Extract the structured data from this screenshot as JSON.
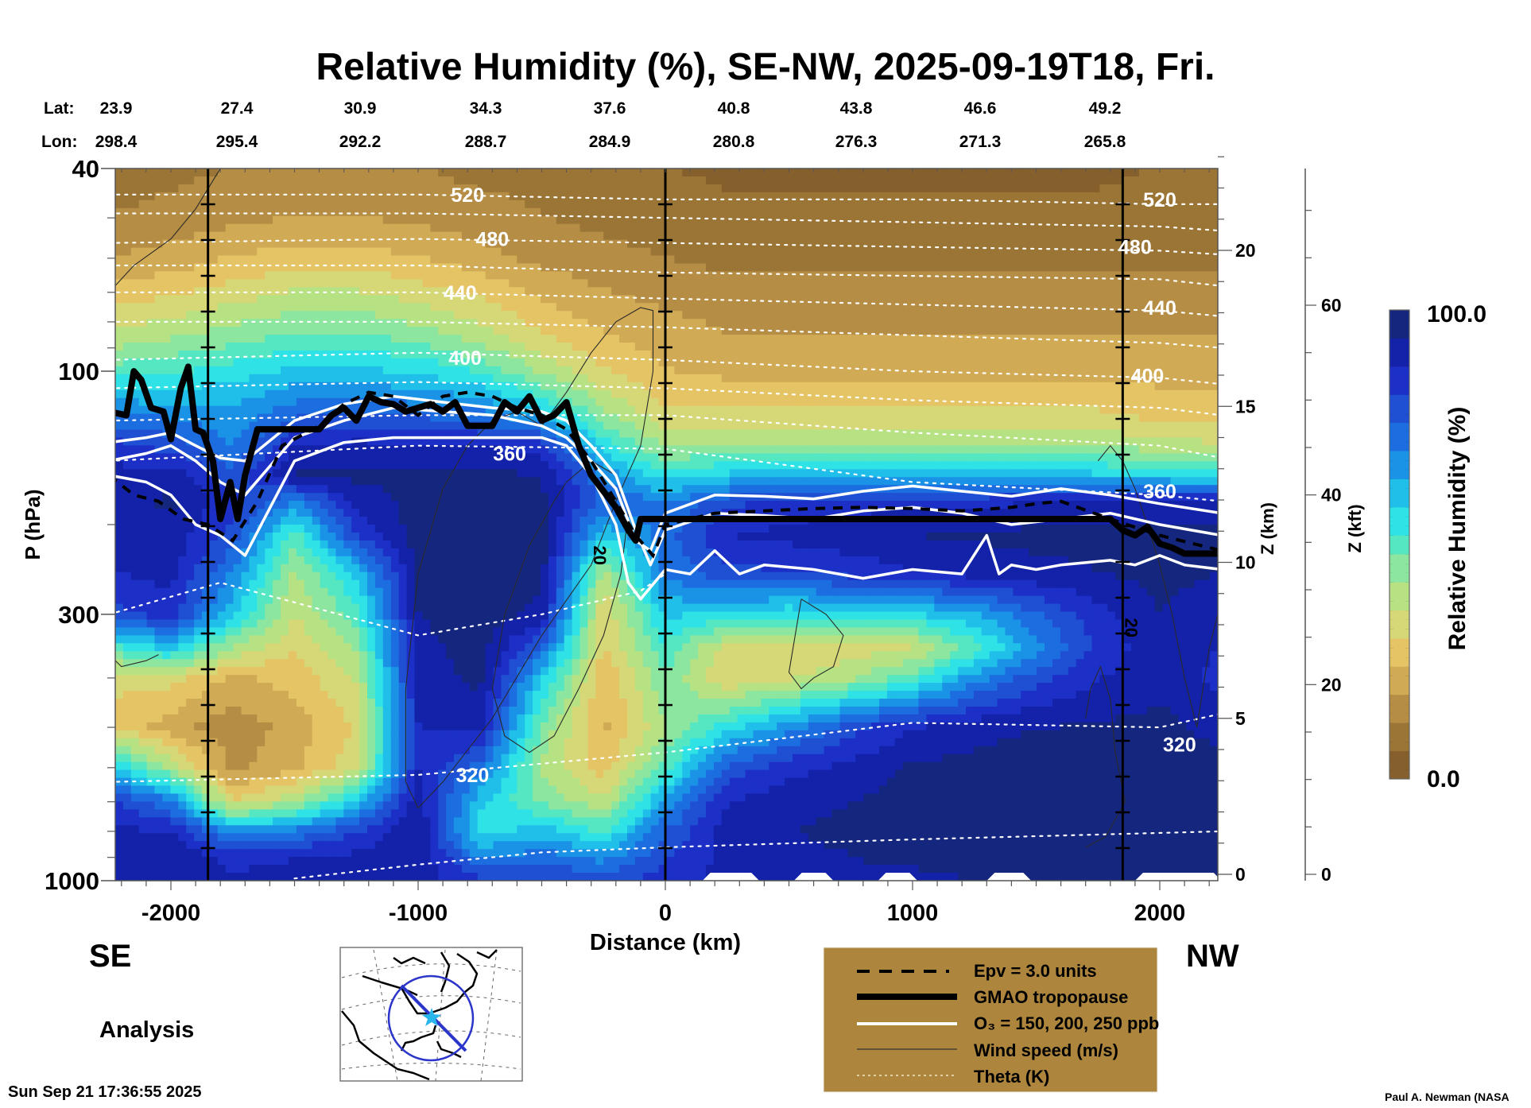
{
  "chart_data": {
    "type": "heatmap",
    "title": "Relative Humidity (%), SE-NW, 2025-09-19T18, Fri.",
    "xlabel": "Distance (km)",
    "ylabel": "P (hPa)",
    "right_axis_1_label": "Z (km)",
    "right_axis_2_label": "Z (kft)",
    "colorbar_label": "Relative Humidity (%)",
    "colorbar_min_label": "0.0",
    "colorbar_max_label": "100.0",
    "colorbar_range": [
      0,
      100
    ],
    "xlim": [
      -2250,
      2250
    ],
    "ylim": [
      1000,
      40
    ],
    "yscale": "log",
    "x_ticks": [
      -2000,
      -1000,
      0,
      1000,
      2000
    ],
    "x_tick_labels": [
      "-2000",
      "-1000",
      "0",
      "1000",
      "2000"
    ],
    "y_ticks": [
      40,
      100,
      300,
      1000
    ],
    "y_tick_labels": [
      "40",
      "100",
      "300",
      "1000"
    ],
    "z_km_ticks": [
      0,
      5,
      10,
      15,
      20
    ],
    "z_km_tick_labels": [
      "0",
      "5",
      "10",
      "15",
      "20"
    ],
    "z_kft_ticks": [
      0,
      20,
      40,
      60
    ],
    "z_kft_tick_labels": [
      "0",
      "20",
      "40",
      "60"
    ],
    "lat_label": "Lat:",
    "lon_label": "Lon:",
    "lat_values": [
      "23.9",
      "27.4",
      "30.9",
      "34.3",
      "37.6",
      "40.8",
      "43.8",
      "46.6",
      "49.2"
    ],
    "lon_values": [
      "298.4",
      "295.4",
      "292.2",
      "288.7",
      "284.9",
      "280.8",
      "276.3",
      "271.3",
      "265.8"
    ],
    "vertical_markers_km": [
      -1850,
      0,
      1850
    ],
    "theta_contours": [
      {
        "label": "520",
        "pressure": [
          45,
          45,
          46,
          46,
          47,
          47
        ],
        "x": [
          -2250,
          -1000,
          0,
          1000,
          2000,
          2250
        ]
      },
      {
        "label": "480",
        "pressure": [
          56,
          55,
          56,
          57,
          58,
          59
        ],
        "x": [
          -2250,
          -1000,
          0,
          1000,
          2000,
          2250
        ]
      },
      {
        "label": "440",
        "pressure": [
          70,
          70,
          72,
          74,
          76,
          78
        ],
        "x": [
          -2250,
          -1000,
          0,
          1000,
          2000,
          2250
        ]
      },
      {
        "label": "400",
        "pressure": [
          95,
          92,
          95,
          100,
          103,
          106
        ],
        "x": [
          -2250,
          -1000,
          0,
          1000,
          2000,
          2250
        ]
      },
      {
        "label": "360",
        "pressure": [
          150,
          140,
          142,
          165,
          175,
          180
        ],
        "x": [
          -2250,
          -1000,
          0,
          1000,
          2000,
          2250
        ]
      },
      {
        "label": "320",
        "pressure": [
          640,
          620,
          560,
          490,
          500,
          470
        ],
        "x": [
          -2250,
          -1000,
          0,
          1000,
          2000,
          2250
        ]
      },
      {
        "label": "",
        "pressure": [
          300,
          260,
          330,
          300,
          270,
          250
        ],
        "x": [
          -2250,
          -1800,
          -1000,
          -500,
          -100,
          0
        ]
      },
      {
        "label": "",
        "pressure": [
          990,
          930,
          880,
          860,
          830,
          800
        ],
        "x": [
          -1500,
          -1000,
          -500,
          0,
          1000,
          2250
        ]
      }
    ],
    "theta_label_positions": [
      {
        "label": "520",
        "x": -800,
        "p": 45
      },
      {
        "label": "480",
        "x": -700,
        "p": 55
      },
      {
        "label": "440",
        "x": -830,
        "p": 70
      },
      {
        "label": "400",
        "x": -810,
        "p": 94
      },
      {
        "label": "360",
        "x": -630,
        "p": 145
      },
      {
        "label": "320",
        "x": -780,
        "p": 620
      },
      {
        "label": "520",
        "x": 2000,
        "p": 46
      },
      {
        "label": "480",
        "x": 1900,
        "p": 57
      },
      {
        "label": "440",
        "x": 2000,
        "p": 75
      },
      {
        "label": "400",
        "x": 1950,
        "p": 102
      },
      {
        "label": "360",
        "x": 2000,
        "p": 172
      },
      {
        "label": "320",
        "x": 2080,
        "p": 540
      }
    ],
    "tropopause": {
      "x": [
        -2250,
        -2180,
        -2150,
        -2120,
        -2080,
        -2030,
        -2000,
        -1960,
        -1930,
        -1900,
        -1870,
        -1830,
        -1800,
        -1760,
        -1730,
        -1700,
        -1650,
        -1600,
        -1400,
        -1350,
        -1300,
        -1250,
        -1200,
        -1150,
        -1100,
        -1050,
        -1000,
        -950,
        -900,
        -850,
        -800,
        -700,
        -650,
        -600,
        -550,
        -500,
        -450,
        -400,
        -350,
        -300,
        -200,
        -150,
        -120,
        -100,
        0,
        400,
        1000,
        1800,
        1850,
        1900,
        1950,
        2000,
        2050,
        2100,
        2250
      ],
      "pressure": [
        120,
        122,
        100,
        104,
        118,
        120,
        136,
        108,
        98,
        130,
        132,
        150,
        195,
        165,
        195,
        160,
        130,
        130,
        130,
        122,
        118,
        125,
        112,
        115,
        116,
        120,
        118,
        116,
        120,
        115,
        128,
        128,
        115,
        120,
        112,
        125,
        122,
        115,
        140,
        160,
        185,
        205,
        215,
        195,
        195,
        195,
        195,
        195,
        205,
        210,
        202,
        218,
        222,
        228,
        228
      ]
    },
    "ozone_contours_ppb": [
      150,
      200,
      250
    ],
    "epv_units": 3.0,
    "wind_speed_label": "20",
    "rh_field": {
      "description": "Approximate relative humidity (%) on a coarse distance-pressure grid",
      "x": [
        -2250,
        -2000,
        -1750,
        -1500,
        -1250,
        -1000,
        -750,
        -500,
        -250,
        0,
        250,
        500,
        750,
        1000,
        1250,
        1500,
        1750,
        2000,
        2250
      ],
      "pressure": [
        40,
        50,
        60,
        70,
        85,
        100,
        120,
        140,
        160,
        180,
        210,
        250,
        300,
        350,
        400,
        500,
        600,
        700,
        800,
        900,
        1000
      ],
      "values": [
        [
          8,
          10,
          12,
          14,
          14,
          12,
          10,
          10,
          8,
          6,
          5,
          5,
          5,
          5,
          5,
          5,
          5,
          6,
          6
        ],
        [
          12,
          14,
          16,
          18,
          18,
          16,
          14,
          12,
          10,
          8,
          7,
          7,
          7,
          7,
          7,
          7,
          7,
          8,
          8
        ],
        [
          18,
          20,
          24,
          26,
          26,
          24,
          20,
          16,
          14,
          12,
          10,
          10,
          10,
          10,
          10,
          10,
          10,
          10,
          10
        ],
        [
          26,
          28,
          32,
          36,
          36,
          32,
          28,
          22,
          18,
          16,
          14,
          14,
          14,
          14,
          14,
          14,
          14,
          14,
          14
        ],
        [
          36,
          40,
          44,
          48,
          48,
          44,
          38,
          30,
          24,
          20,
          18,
          18,
          18,
          18,
          18,
          18,
          18,
          18,
          18
        ],
        [
          50,
          52,
          56,
          60,
          60,
          58,
          52,
          40,
          30,
          24,
          22,
          22,
          22,
          22,
          22,
          22,
          22,
          22,
          22
        ],
        [
          70,
          68,
          66,
          74,
          76,
          74,
          72,
          60,
          42,
          30,
          30,
          30,
          30,
          30,
          30,
          30,
          30,
          26,
          26
        ],
        [
          85,
          80,
          70,
          88,
          90,
          90,
          88,
          86,
          56,
          40,
          42,
          42,
          42,
          42,
          42,
          42,
          40,
          38,
          36
        ],
        [
          90,
          92,
          78,
          95,
          96,
          96,
          96,
          94,
          70,
          55,
          60,
          62,
          62,
          62,
          62,
          62,
          60,
          58,
          55
        ],
        [
          92,
          95,
          85,
          70,
          90,
          96,
          98,
          96,
          76,
          70,
          80,
          85,
          86,
          86,
          86,
          88,
          88,
          90,
          90
        ],
        [
          92,
          92,
          80,
          50,
          82,
          98,
          99,
          97,
          60,
          74,
          88,
          90,
          92,
          94,
          95,
          96,
          96,
          97,
          96
        ],
        [
          88,
          90,
          70,
          40,
          60,
          96,
          98,
          96,
          38,
          72,
          80,
          82,
          84,
          88,
          90,
          92,
          94,
          96,
          94
        ],
        [
          80,
          86,
          60,
          35,
          50,
          94,
          98,
          92,
          30,
          60,
          58,
          54,
          56,
          58,
          64,
          76,
          86,
          94,
          90
        ],
        [
          50,
          60,
          40,
          30,
          42,
          92,
          97,
          76,
          28,
          52,
          32,
          30,
          32,
          34,
          50,
          68,
          84,
          92,
          88
        ],
        [
          30,
          32,
          22,
          26,
          36,
          90,
          96,
          60,
          24,
          46,
          30,
          34,
          40,
          50,
          68,
          80,
          88,
          92,
          86
        ],
        [
          30,
          20,
          14,
          20,
          30,
          88,
          90,
          46,
          22,
          40,
          56,
          68,
          80,
          88,
          92,
          94,
          95,
          96,
          92
        ],
        [
          60,
          40,
          16,
          22,
          34,
          88,
          74,
          40,
          26,
          50,
          78,
          86,
          90,
          95,
          96,
          97,
          98,
          98,
          96
        ],
        [
          84,
          72,
          30,
          40,
          60,
          92,
          60,
          46,
          36,
          66,
          88,
          92,
          94,
          97,
          98,
          98,
          98,
          98,
          97
        ],
        [
          90,
          88,
          68,
          72,
          82,
          94,
          56,
          62,
          52,
          76,
          92,
          94,
          96,
          98,
          98,
          98,
          98,
          98,
          98
        ],
        [
          94,
          94,
          86,
          88,
          90,
          94,
          70,
          74,
          68,
          82,
          90,
          92,
          94,
          96,
          97,
          97,
          97,
          97,
          97
        ],
        [
          92,
          92,
          90,
          90,
          92,
          92,
          84,
          84,
          80,
          86,
          90,
          90,
          92,
          92,
          94,
          94,
          94,
          94,
          94
        ]
      ]
    }
  },
  "labels": {
    "direction_left": "SE",
    "direction_right": "NW",
    "analysis": "Analysis",
    "timestamp": "Sun Sep 21 17:36:55 2025",
    "credit": "Paul A. Newman (NASA"
  },
  "legend": {
    "items": [
      {
        "style": "dashed",
        "label": "Epv = 3.0 units"
      },
      {
        "style": "thick",
        "label": "GMAO tropopause"
      },
      {
        "style": "white",
        "label": "O₃ = 150, 200, 250 ppb"
      },
      {
        "style": "thin",
        "label": "Wind speed (m/s)"
      },
      {
        "style": "dotted",
        "label": "Theta (K)"
      }
    ],
    "background": "#ad853c"
  },
  "colors": {
    "colormap": [
      "#85602c",
      "#9a7535",
      "#b58d44",
      "#d1aa55",
      "#e5c465",
      "#d6d877",
      "#b6e283",
      "#8de6a0",
      "#55e6c2",
      "#2ee2e6",
      "#1fbfea",
      "#1a93e6",
      "#1c6ee0",
      "#1f4fd2",
      "#1c2fc6",
      "#1322a8",
      "#14267e"
    ]
  }
}
